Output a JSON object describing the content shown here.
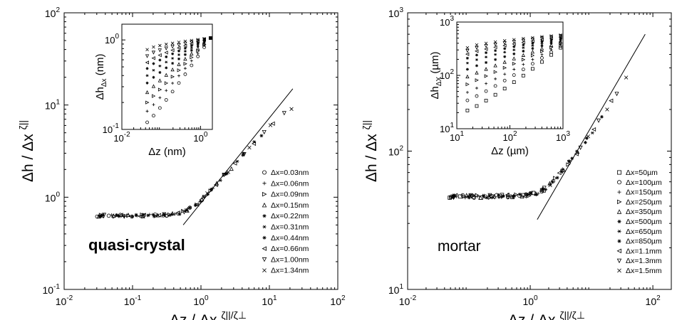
{
  "chart_data": [
    {
      "type": "scatter",
      "annotation": "quasi-crystal",
      "xscale": "log",
      "yscale": "log",
      "xlim": [
        0.01,
        100
      ],
      "ylim": [
        0.1,
        100
      ],
      "xticks": [
        0.01,
        0.1,
        1,
        10,
        100
      ],
      "yticks": [
        0.1,
        1,
        10,
        100
      ],
      "xlabel": "Δz / Δx",
      "xlabel_sup": "ζ||/ζ⊥",
      "ylabel": "Δh / Δx",
      "ylabel_sup": "ζ||",
      "legend_position": "right",
      "series": [
        {
          "name": "Δx=0.03nm",
          "marker": "circle"
        },
        {
          "name": "Δx=0.06nm",
          "marker": "plus"
        },
        {
          "name": "Δx=0.09nm",
          "marker": "triangle-right"
        },
        {
          "name": "Δx=0.15nm",
          "marker": "triangle-up"
        },
        {
          "name": "Δx=0.22nm",
          "marker": "asterisk"
        },
        {
          "name": "Δx=0.31nm",
          "marker": "star"
        },
        {
          "name": "Δx=0.44nm",
          "marker": "asterisk"
        },
        {
          "name": "Δx=0.66nm",
          "marker": "triangle-left"
        },
        {
          "name": "Δx=1.00nm",
          "marker": "triangle-down"
        },
        {
          "name": "Δx=1.34nm",
          "marker": "cross"
        }
      ],
      "collapse_curve": {
        "x": [
          0.025,
          0.1,
          0.3,
          0.5,
          0.8,
          1,
          1.5,
          2,
          3,
          5,
          8,
          12,
          20,
          30
        ],
        "y": [
          0.63,
          0.63,
          0.64,
          0.67,
          0.8,
          0.93,
          1.25,
          1.6,
          2.2,
          3.4,
          4.9,
          6.6,
          9.0,
          11.0
        ]
      },
      "fit_line": {
        "x": [
          0.55,
          22
        ],
        "y": [
          0.5,
          15
        ]
      },
      "inset": {
        "xscale": "log",
        "yscale": "log",
        "xlim": [
          0.01,
          2
        ],
        "ylim": [
          0.1,
          1.5
        ],
        "xticks": [
          0.01,
          1
        ],
        "yticks": [
          0.1,
          1
        ],
        "xlabel": "Δz (nm)",
        "ylabel": "Δh",
        "ylabel_sub": "Δx",
        "ylabel_unit": "(nm)",
        "curves_start_y": [
          0.12,
          0.16,
          0.2,
          0.26,
          0.33,
          0.4,
          0.48,
          0.56,
          0.66,
          0.78
        ]
      }
    },
    {
      "type": "scatter",
      "annotation": "mortar",
      "xscale": "log",
      "yscale": "log",
      "xlim": [
        0.01,
        200
      ],
      "ylim": [
        10,
        1000
      ],
      "xticks": [
        0.01,
        1,
        100
      ],
      "yticks": [
        10,
        100,
        1000
      ],
      "xlabel": "Δz / Δx",
      "xlabel_sup": "ζ||/ζ⊥",
      "ylabel": "Δh / Δx",
      "ylabel_sup": "ζ||",
      "legend_position": "right",
      "series": [
        {
          "name": "Δx=50µm",
          "marker": "square"
        },
        {
          "name": "Δx=100µm",
          "marker": "circle"
        },
        {
          "name": "Δx=150µm",
          "marker": "plus"
        },
        {
          "name": "Δx=250µm",
          "marker": "triangle-right"
        },
        {
          "name": "Δx=350µm",
          "marker": "triangle-up"
        },
        {
          "name": "Δx=500µm",
          "marker": "asterisk"
        },
        {
          "name": "Δx=650µm",
          "marker": "star"
        },
        {
          "name": "Δx=850µm",
          "marker": "asterisk"
        },
        {
          "name": "Δx=1.1mm",
          "marker": "triangle-left"
        },
        {
          "name": "Δx=1.3mm",
          "marker": "triangle-down"
        },
        {
          "name": "Δx=1.5mm",
          "marker": "cross"
        }
      ],
      "collapse_curve": {
        "x": [
          0.04,
          0.2,
          0.6,
          1.2,
          1.8,
          2.5,
          4,
          6,
          10,
          20,
          35,
          50
        ],
        "y": [
          47,
          47,
          47.5,
          49,
          54,
          62,
          80,
          100,
          135,
          220,
          330,
          420
        ]
      },
      "fit_line": {
        "x": [
          1.3,
          75
        ],
        "y": [
          32,
          700
        ]
      },
      "inset": {
        "xscale": "log",
        "yscale": "log",
        "xlim": [
          10,
          1000
        ],
        "ylim": [
          10,
          1000
        ],
        "xticks": [
          10,
          100,
          1000
        ],
        "yticks": [
          10,
          100,
          1000
        ],
        "xlabel": "Δz (µm)",
        "ylabel": "Δh",
        "ylabel_sub": "ΔX",
        "ylabel_unit": "(µm)",
        "curves_start_y": [
          22,
          34,
          48,
          68,
          95,
          130,
          170,
          210,
          250,
          290,
          330
        ]
      }
    }
  ]
}
